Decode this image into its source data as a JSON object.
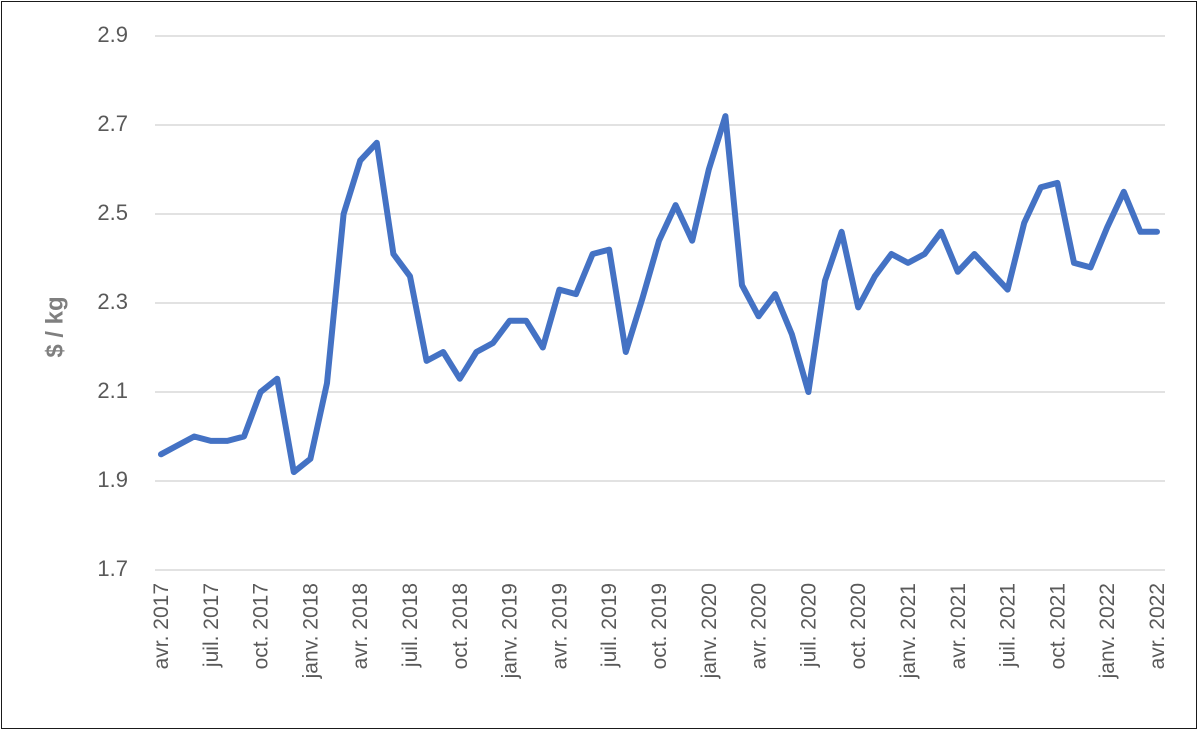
{
  "chart_data": {
    "type": "line",
    "title": "",
    "xlabel": "",
    "ylabel": "$ / kg",
    "ylim": [
      1.7,
      2.9
    ],
    "yticks": [
      "2.9",
      "2.7",
      "2.5",
      "2.3",
      "2.1",
      "1.9",
      "1.7"
    ],
    "grid": true,
    "x_tick_labels": [
      "avr. 2017",
      "juil. 2017",
      "oct. 2017",
      "janv. 2018",
      "avr. 2018",
      "juil. 2018",
      "oct. 2018",
      "janv. 2019",
      "avr. 2019",
      "juil. 2019",
      "oct. 2019",
      "janv. 2020",
      "avr. 2020",
      "juil. 2020",
      "oct. 2020",
      "janv. 2021",
      "avr. 2021",
      "juil. 2021",
      "oct. 2021",
      "janv. 2022",
      "avr. 2022"
    ],
    "series": [
      {
        "color": "#4472c4",
        "values": [
          1.96,
          1.98,
          2.0,
          1.99,
          1.99,
          2.0,
          2.1,
          2.13,
          1.92,
          1.95,
          2.12,
          2.5,
          2.62,
          2.66,
          2.41,
          2.36,
          2.17,
          2.19,
          2.13,
          2.19,
          2.21,
          2.26,
          2.26,
          2.2,
          2.33,
          2.32,
          2.41,
          2.42,
          2.19,
          2.31,
          2.44,
          2.52,
          2.44,
          2.6,
          2.72,
          2.34,
          2.27,
          2.32,
          2.23,
          2.1,
          2.35,
          2.46,
          2.29,
          2.36,
          2.41,
          2.39,
          2.41,
          2.46,
          2.37,
          2.41,
          2.37,
          2.33,
          2.48,
          2.56,
          2.57,
          2.39,
          2.38,
          2.47,
          2.55,
          2.46,
          2.46
        ]
      }
    ]
  }
}
